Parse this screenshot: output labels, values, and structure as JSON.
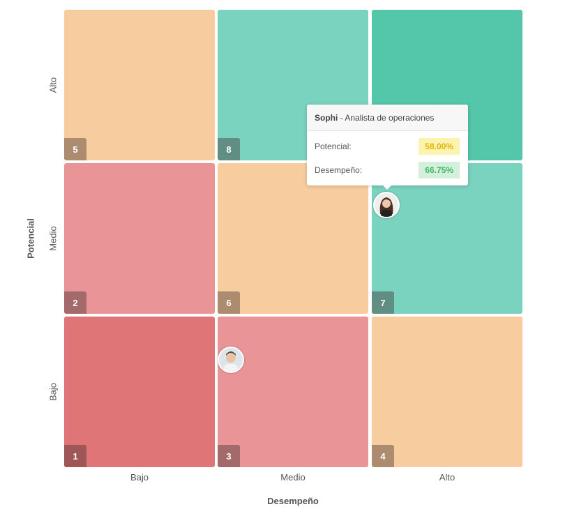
{
  "y_axis": {
    "title": "Potencial",
    "labels": [
      "Alto",
      "Medio",
      "Bajo"
    ]
  },
  "x_axis": {
    "title": "Desempeño",
    "labels": [
      "Bajo",
      "Medio",
      "Alto"
    ]
  },
  "cells": [
    {
      "number": 5,
      "color": "#f7cd9f",
      "row": 0,
      "col": 0
    },
    {
      "number": 8,
      "color": "#7ad3bf",
      "row": 0,
      "col": 1
    },
    {
      "number": null,
      "color": "#54c7ab",
      "row": 0,
      "col": 2
    },
    {
      "number": 2,
      "color": "#e99497",
      "row": 1,
      "col": 0
    },
    {
      "number": 6,
      "color": "#f7cd9f",
      "row": 1,
      "col": 1
    },
    {
      "number": 7,
      "color": "#7ad3bf",
      "row": 1,
      "col": 2
    },
    {
      "number": 1,
      "color": "#e07577",
      "row": 2,
      "col": 0
    },
    {
      "number": 3,
      "color": "#e99497",
      "row": 2,
      "col": 1
    },
    {
      "number": 4,
      "color": "#f7cd9f",
      "row": 2,
      "col": 2
    }
  ],
  "tooltip": {
    "name": "Sophi",
    "role": "- Analista de operaciones",
    "rows": [
      {
        "label": "Potencial:",
        "value": "58.00%"
      },
      {
        "label": "Desempeño:",
        "value": "66.75%"
      }
    ]
  }
}
